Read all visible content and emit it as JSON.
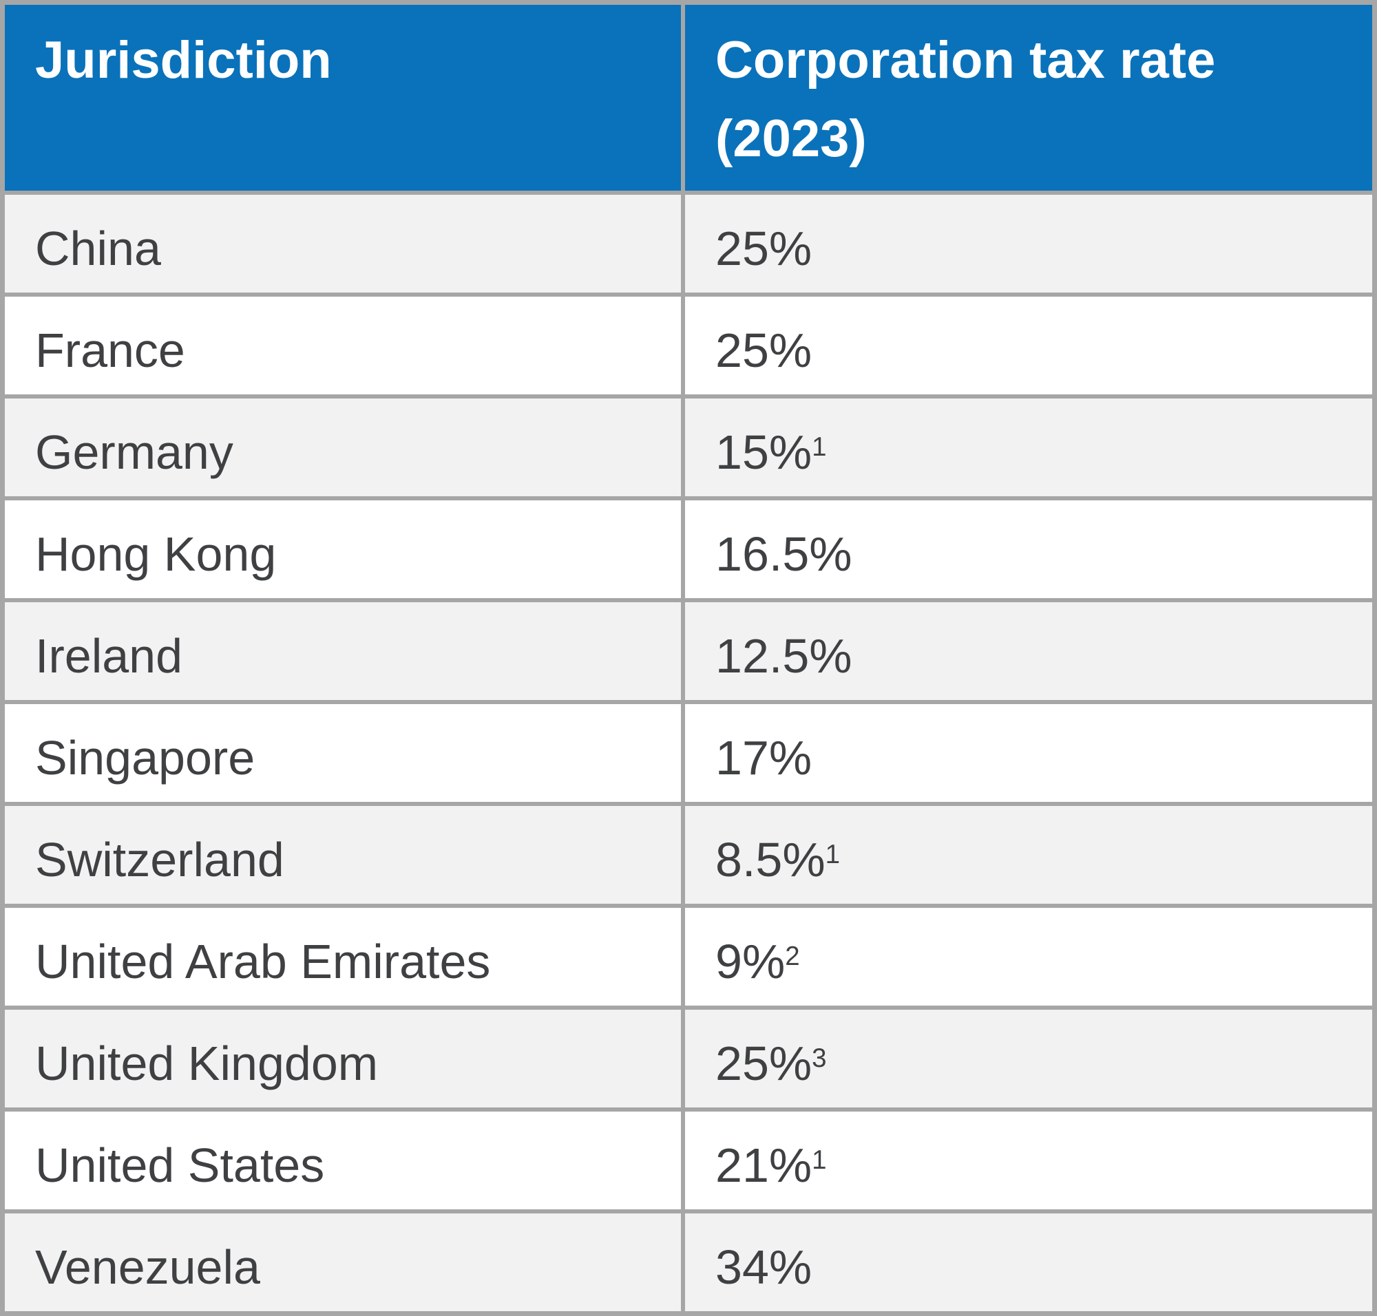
{
  "colors": {
    "header_bg": "#0a72ba",
    "header_text": "#ffffff",
    "row_stripe_bg": "#f2f2f2",
    "row_bg": "#ffffff",
    "border": "#a6a6a6",
    "body_text": "#3e4042"
  },
  "table": {
    "header": {
      "jurisdiction": "Jurisdiction",
      "rate_line1": "Corporation tax rate",
      "rate_line2": "(2023)"
    },
    "rows": [
      {
        "jurisdiction": "China",
        "rate": "25%",
        "sup": ""
      },
      {
        "jurisdiction": "France",
        "rate": "25%",
        "sup": ""
      },
      {
        "jurisdiction": "Germany",
        "rate": "15%",
        "sup": "1"
      },
      {
        "jurisdiction": "Hong Kong",
        "rate": "16.5%",
        "sup": ""
      },
      {
        "jurisdiction": "Ireland",
        "rate": "12.5%",
        "sup": ""
      },
      {
        "jurisdiction": "Singapore",
        "rate": "17%",
        "sup": ""
      },
      {
        "jurisdiction": "Switzerland",
        "rate": "8.5%",
        "sup": "1"
      },
      {
        "jurisdiction": "United Arab Emirates",
        "rate": "9%",
        "sup": "2"
      },
      {
        "jurisdiction": "United Kingdom",
        "rate": "25%",
        "sup": "3"
      },
      {
        "jurisdiction": "United States",
        "rate": "21%",
        "sup": "1"
      },
      {
        "jurisdiction": "Venezuela",
        "rate": "34%",
        "sup": ""
      }
    ]
  },
  "chart_data": {
    "type": "table",
    "title": "",
    "columns": [
      "Jurisdiction",
      "Corporation tax rate (2023)"
    ],
    "rows": [
      [
        "China",
        "25%"
      ],
      [
        "France",
        "25%"
      ],
      [
        "Germany",
        "15%¹"
      ],
      [
        "Hong Kong",
        "16.5%"
      ],
      [
        "Ireland",
        "12.5%"
      ],
      [
        "Singapore",
        "17%"
      ],
      [
        "Switzerland",
        "8.5%¹"
      ],
      [
        "United Arab Emirates",
        "9%²"
      ],
      [
        "United Kingdom",
        "25%³"
      ],
      [
        "United States",
        "21%¹"
      ],
      [
        "Venezuela",
        "34%"
      ]
    ],
    "footnote_markers": {
      "Germany": "1",
      "Switzerland": "1",
      "United Arab Emirates": "2",
      "United Kingdom": "3",
      "United States": "1"
    },
    "layout": {
      "header_style": "solid-blue",
      "row_striping": "odd-rows-light-gray",
      "grid": true
    }
  }
}
